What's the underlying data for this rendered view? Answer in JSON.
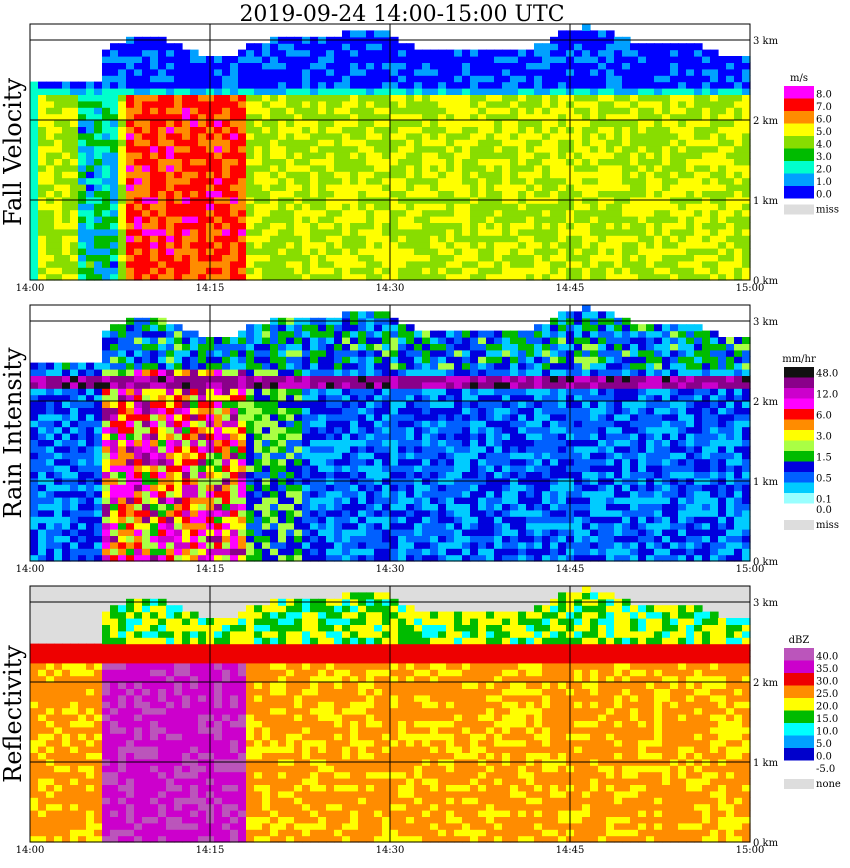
{
  "title": "2019-09-24   14:00-15:00 UTC",
  "chart_data": [
    {
      "type": "heatmap",
      "title": "Fall Velocity",
      "x_ticks": [
        "14:00",
        "14:15",
        "14:30",
        "14:45",
        "15:00"
      ],
      "y_ticks": [
        "0 km",
        "1 km",
        "2 km",
        "3 km"
      ],
      "ylim": [
        0,
        3.2
      ],
      "grid": true,
      "legend_unit": "m/s",
      "legend": [
        {
          "label": "8.0",
          "color": "#ff00ff"
        },
        {
          "label": "7.0",
          "color": "#ff0000"
        },
        {
          "label": "6.0",
          "color": "#ff8c00"
        },
        {
          "label": "5.0",
          "color": "#ffff00"
        },
        {
          "label": "4.0",
          "color": "#88dd00"
        },
        {
          "label": "3.0",
          "color": "#00bb00"
        },
        {
          "label": "2.0",
          "color": "#00ffcc"
        },
        {
          "label": "1.0",
          "color": "#00a0ff"
        },
        {
          "label": "0.0",
          "color": "#0000ff"
        }
      ],
      "missing_label": "miss",
      "missing_color": "#dddddd"
    },
    {
      "type": "heatmap",
      "title": "Rain Intensity",
      "x_ticks": [
        "14:00",
        "14:15",
        "14:30",
        "14:45",
        "15:00"
      ],
      "y_ticks": [
        "0 km",
        "1 km",
        "2 km",
        "3 km"
      ],
      "ylim": [
        0,
        3.2
      ],
      "grid": true,
      "legend_unit": "mm/hr",
      "legend": [
        {
          "label": "48.0",
          "color": "#111111"
        },
        {
          "label": "",
          "color": "#8a008a"
        },
        {
          "label": "12.0",
          "color": "#cc00cc"
        },
        {
          "label": "",
          "color": "#ff00ff"
        },
        {
          "label": "6.0",
          "color": "#ff0000"
        },
        {
          "label": "",
          "color": "#ff8c00"
        },
        {
          "label": "3.0",
          "color": "#ffff00"
        },
        {
          "label": "",
          "color": "#aaff44"
        },
        {
          "label": "1.5",
          "color": "#00bb00"
        },
        {
          "label": "",
          "color": "#0000dd"
        },
        {
          "label": "0.5",
          "color": "#0060ff"
        },
        {
          "label": "",
          "color": "#00ccff"
        },
        {
          "label": "0.1",
          "color": "#99ffff"
        },
        {
          "label": "0.0",
          "color": "#ffffff"
        }
      ],
      "missing_label": "miss",
      "missing_color": "#dddddd"
    },
    {
      "type": "heatmap",
      "title": "Reflectivity",
      "x_ticks": [
        "14:00",
        "14:15",
        "14:30",
        "14:45",
        "15:00"
      ],
      "y_ticks": [
        "0 km",
        "1 km",
        "2 km",
        "3 km"
      ],
      "ylim": [
        0,
        3.2
      ],
      "grid": true,
      "legend_unit": "dBZ",
      "legend": [
        {
          "label": "40.0",
          "color": "#bb55bb"
        },
        {
          "label": "35.0",
          "color": "#cc00cc"
        },
        {
          "label": "30.0",
          "color": "#ee0000"
        },
        {
          "label": "25.0",
          "color": "#ff8c00"
        },
        {
          "label": "20.0",
          "color": "#ffff00"
        },
        {
          "label": "15.0",
          "color": "#00bb00"
        },
        {
          "label": "10.0",
          "color": "#00ffff"
        },
        {
          "label": "5.0",
          "color": "#00a0ff"
        },
        {
          "label": "0.0",
          "color": "#0000cc"
        },
        {
          "label": "-5.0",
          "color": "#ffffff"
        }
      ],
      "missing_label": "none",
      "missing_color": "#dddddd"
    }
  ]
}
